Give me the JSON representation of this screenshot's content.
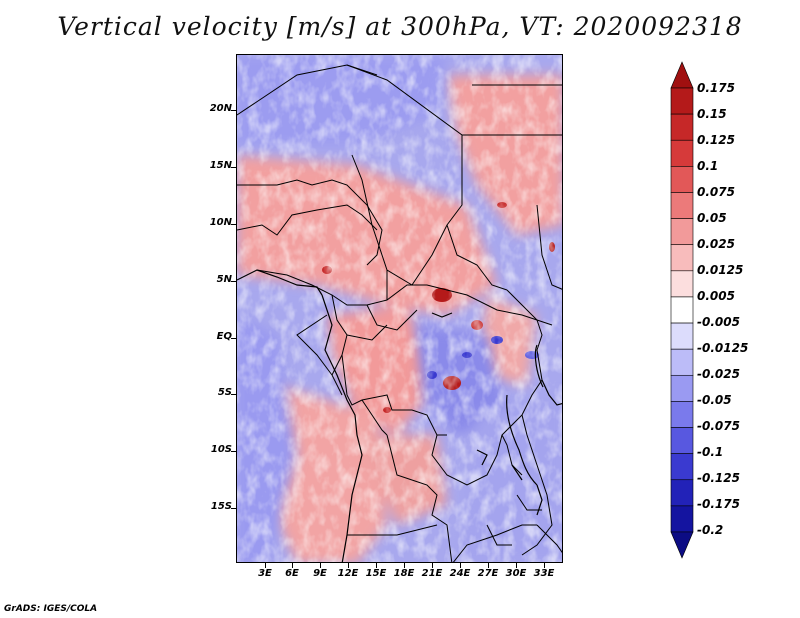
{
  "title": "Vertical velocity [m/s] at 300hPa, VT: 2020092318",
  "footer": "GrADS: IGES/COLA",
  "map": {
    "variable": "Vertical velocity",
    "units": "m/s",
    "level": "300hPa",
    "valid_time": "2020092318",
    "lat_labels": [
      "20N",
      "15N",
      "10N",
      "5N",
      "EQ",
      "5S",
      "10S",
      "15S"
    ],
    "lon_labels": [
      "3E",
      "6E",
      "9E",
      "12E",
      "15E",
      "18E",
      "21E",
      "24E",
      "27E",
      "30E",
      "33E"
    ]
  },
  "colorbar": {
    "labels": [
      "0.175",
      "0.15",
      "0.125",
      "0.1",
      "0.075",
      "0.05",
      "0.025",
      "0.0125",
      "0.005",
      "-0.005",
      "-0.0125",
      "-0.025",
      "-0.05",
      "-0.075",
      "-0.1",
      "-0.125",
      "-0.175",
      "-0.2"
    ],
    "colors": [
      "#a01010",
      "#b41a1a",
      "#c62828",
      "#d63a3a",
      "#e25858",
      "#ec7a7a",
      "#f29a9a",
      "#f8bcbc",
      "#fcdede",
      "#ffffff",
      "#dcdcfc",
      "#bcbcf8",
      "#9a9af2",
      "#7a7aec",
      "#5858e0",
      "#3a3ad0",
      "#2222b8",
      "#1414a0",
      "#0c0c84"
    ]
  }
}
